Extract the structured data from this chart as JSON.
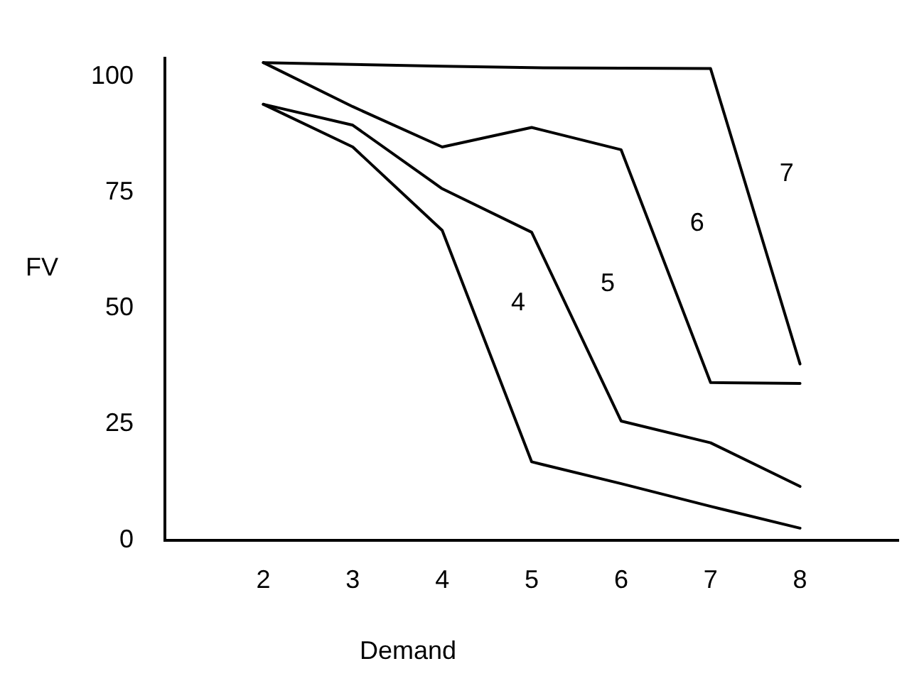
{
  "chart_data": {
    "type": "line",
    "xlabel": "Demand",
    "ylabel": "FV",
    "x": [
      2,
      3,
      4,
      5,
      6,
      7,
      8
    ],
    "series": [
      {
        "name": "4",
        "color": "#000000",
        "values": [
          94,
          84.8,
          66.8,
          16.9,
          12.2,
          7.3,
          2.6
        ]
      },
      {
        "name": "5",
        "color": "#000000",
        "values": [
          94,
          89.5,
          75.8,
          66.4,
          25.7,
          21,
          11.6
        ]
      },
      {
        "name": "6",
        "color": "#000000",
        "values": [
          103,
          93.5,
          84.8,
          89,
          84.2,
          34,
          33.8
        ]
      },
      {
        "name": "7",
        "color": "#000000",
        "values": [
          103,
          102.6,
          102.2,
          101.9,
          101.8,
          101.7,
          38
        ]
      }
    ],
    "xlim": [
      0.9,
      9.1
    ],
    "xticks": [
      2,
      3,
      4,
      5,
      6,
      7,
      8
    ],
    "ylim": [
      0,
      104
    ],
    "yticks": [
      0,
      25,
      50,
      75,
      100
    ],
    "grid": false,
    "legend": false,
    "marker": "none",
    "line_style": "solid"
  }
}
